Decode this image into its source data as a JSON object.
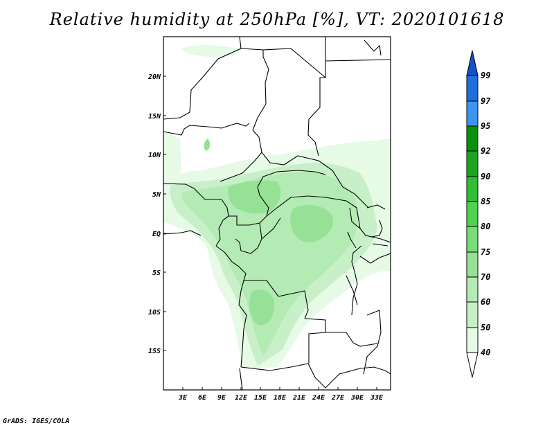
{
  "title": "Relative humidity at 250hPa [%], VT: 2020101618",
  "footer": "GrADS: IGES/COLA",
  "axes": {
    "lat_labels": [
      "20N",
      "15N",
      "10N",
      "5N",
      "EQ",
      "5S",
      "10S",
      "15S"
    ],
    "lon_labels": [
      "3E",
      "6E",
      "9E",
      "12E",
      "15E",
      "18E",
      "21E",
      "24E",
      "27E",
      "30E",
      "33E"
    ]
  },
  "colorbar": {
    "levels": [
      "40",
      "50",
      "60",
      "70",
      "75",
      "80",
      "85",
      "90",
      "92",
      "95",
      "97",
      "99"
    ],
    "colors": {
      "c40_50": "#e6fae6",
      "c50_60": "#c8f0c8",
      "c60_70": "#b4ebb4",
      "c70_75": "#96e196",
      "c75_80": "#78dc78",
      "c80_85": "#50d250",
      "c85_90": "#32be32",
      "c90_92": "#1ea51e",
      "c92_95": "#0a910a",
      "c95_97": "#3c96f0",
      "c97_99": "#1e6edc",
      "c99_up": "#1450c8",
      "below40": "#ffffff"
    }
  }
}
